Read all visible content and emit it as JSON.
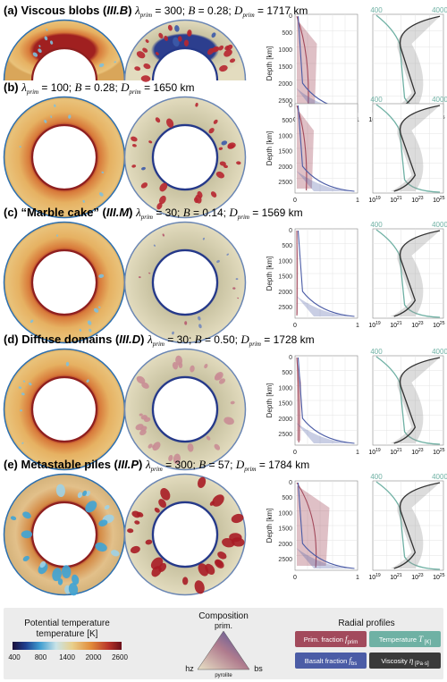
{
  "panels": [
    {
      "letter": "(a)",
      "name": "Viscous blobs",
      "code": "III.B",
      "lambda": "300",
      "B": "0.28",
      "D": "1717 km"
    },
    {
      "letter": "(b)",
      "name": "",
      "code": "",
      "lambda": "100",
      "B": "0.28",
      "D": "1650 km"
    },
    {
      "letter": "(c)",
      "name": "“Marble cake”",
      "code": "III.M",
      "lambda": "30",
      "B": "0.14",
      "D": "1569 km"
    },
    {
      "letter": "(d)",
      "name": "Diffuse domains",
      "code": "III.D",
      "lambda": "30",
      "B": "0.50",
      "D": "1728 km"
    },
    {
      "letter": "(e)",
      "name": "Metastable piles",
      "code": "III.P",
      "lambda": "300",
      "B": "57",
      "D": "1784 km"
    }
  ],
  "symbols": {
    "lambda": "λ",
    "lambda_sub": "prim",
    "B": "B",
    "D": "D",
    "D_sub": "prim"
  },
  "axes": {
    "depth_label": "Depth [km]",
    "depth_ticks": [
      "0",
      "500",
      "1000",
      "1500",
      "2000",
      "2500"
    ],
    "comp_ticks": [
      "0",
      "1"
    ],
    "visc_ticks": [
      "10",
      "10",
      "10",
      "10"
    ],
    "visc_exps": [
      "19",
      "21",
      "23",
      "25"
    ],
    "temp_ticks": [
      "400",
      "4000"
    ]
  },
  "legend": {
    "temp_title": "Potential temperature [K]",
    "temp_ticks": [
      "400",
      "800",
      "1400",
      "2000",
      "2600"
    ],
    "comp_title": "Composition",
    "comp_top": "prim.",
    "comp_left": "hz",
    "comp_right": "bs",
    "comp_bottom": "pyrolite",
    "radial_title": "Radial profiles",
    "entries": [
      {
        "label": "Prim. fraction ",
        "sym": "f",
        "sub": "prim",
        "color": "#a24a5c"
      },
      {
        "label": "Temperature ",
        "sym": "T",
        "sub": " [K]",
        "color": "#6fb1a4"
      },
      {
        "label": "Basalt fraction ",
        "sym": "f",
        "sub": "bs",
        "color": "#4b5ca6"
      },
      {
        "label": "Viscosity ",
        "sym": "η",
        "sub": " [Pa·s]",
        "color": "#3a3a3a"
      }
    ]
  },
  "colors": {
    "prim": "#a24a5c",
    "basalt": "#4b5ca6",
    "temp": "#6fb1a4",
    "visc": "#333333",
    "shell_warm": "#e7b366",
    "cmb": "#8e1f1f"
  }
}
